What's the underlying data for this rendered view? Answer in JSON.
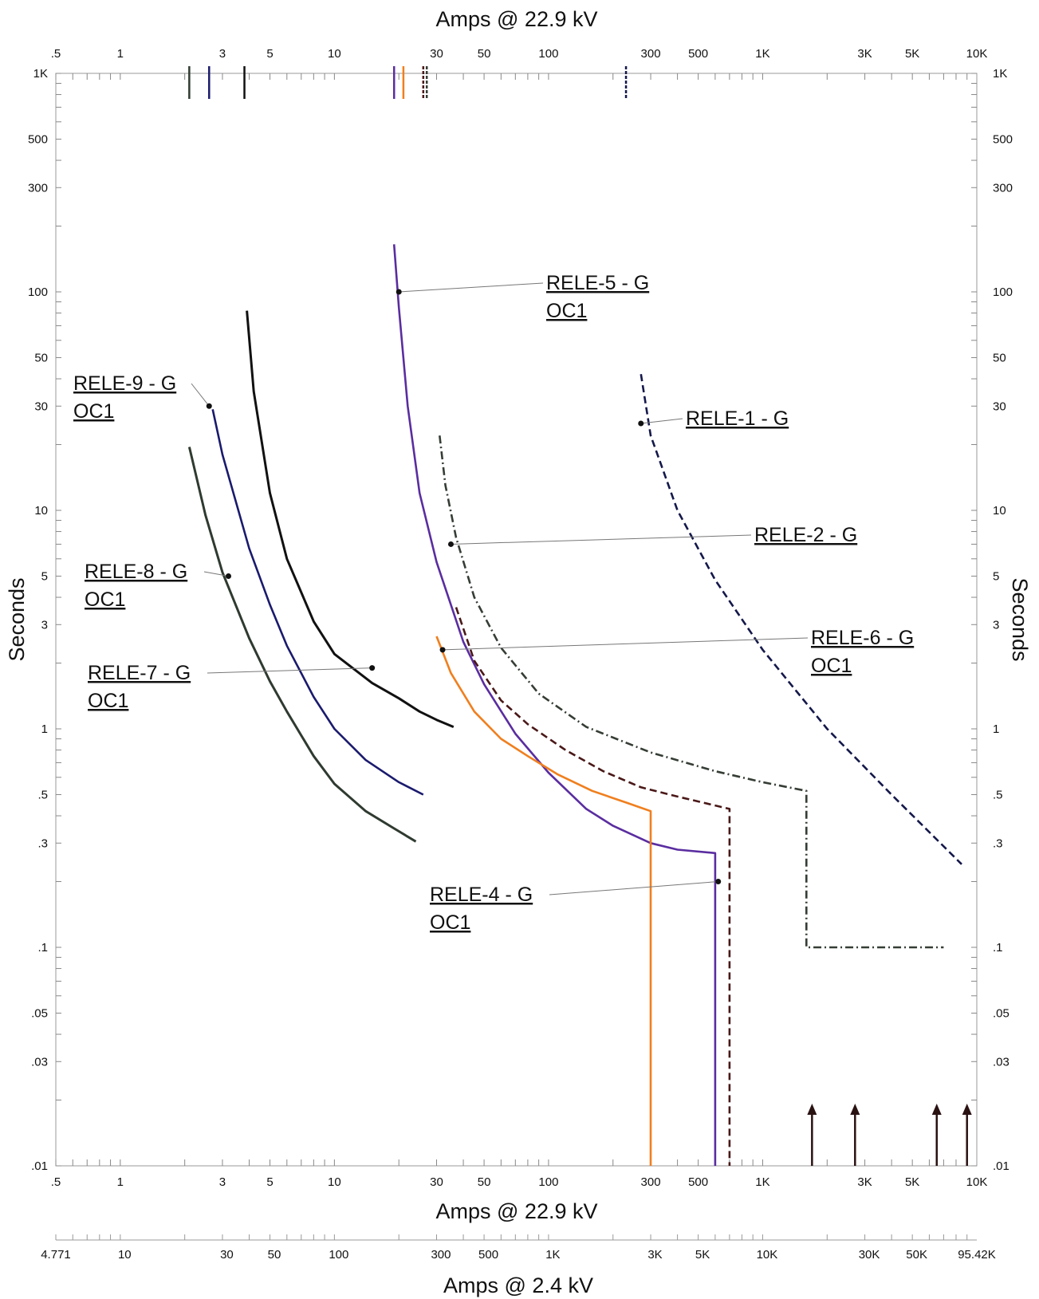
{
  "chart_data": {
    "type": "line",
    "title": "",
    "xlabel_top": "Amps @ 22.9 kV",
    "xlabel_bottom": "Amps @ 22.9 kV",
    "xlabel_secondary": "Amps @ 2.4 kV",
    "ylabel_left": "Seconds",
    "ylabel_right": "Seconds",
    "x_scale": "log",
    "y_scale": "log",
    "xlim": [
      0.5,
      10000
    ],
    "ylim": [
      0.01,
      1000
    ],
    "x_ticks": [
      {
        "value": 0.5,
        "label": ".5"
      },
      {
        "value": 1,
        "label": "1"
      },
      {
        "value": 3,
        "label": "3"
      },
      {
        "value": 5,
        "label": "5"
      },
      {
        "value": 10,
        "label": "10"
      },
      {
        "value": 30,
        "label": "30"
      },
      {
        "value": 50,
        "label": "50"
      },
      {
        "value": 100,
        "label": "100"
      },
      {
        "value": 300,
        "label": "300"
      },
      {
        "value": 500,
        "label": "500"
      },
      {
        "value": 1000,
        "label": "1K"
      },
      {
        "value": 3000,
        "label": "3K"
      },
      {
        "value": 5000,
        "label": "5K"
      },
      {
        "value": 10000,
        "label": "10K"
      }
    ],
    "x_ticks_secondary": [
      {
        "value": 0.5,
        "label": "4.771"
      },
      {
        "value": 1.048,
        "label": "10"
      },
      {
        "value": 3.144,
        "label": "30"
      },
      {
        "value": 5.24,
        "label": "50"
      },
      {
        "value": 10.48,
        "label": "100"
      },
      {
        "value": 31.44,
        "label": "300"
      },
      {
        "value": 52.4,
        "label": "500"
      },
      {
        "value": 104.8,
        "label": "1K"
      },
      {
        "value": 314.4,
        "label": "3K"
      },
      {
        "value": 524,
        "label": "5K"
      },
      {
        "value": 1048,
        "label": "10K"
      },
      {
        "value": 3144,
        "label": "30K"
      },
      {
        "value": 5240,
        "label": "50K"
      },
      {
        "value": 10000,
        "label": "95.42K"
      }
    ],
    "y_ticks": [
      {
        "value": 1000,
        "label": "1K"
      },
      {
        "value": 500,
        "label": "500"
      },
      {
        "value": 300,
        "label": "300"
      },
      {
        "value": 100,
        "label": "100"
      },
      {
        "value": 50,
        "label": "50"
      },
      {
        "value": 30,
        "label": "30"
      },
      {
        "value": 10,
        "label": "10"
      },
      {
        "value": 5,
        "label": "5"
      },
      {
        "value": 3,
        "label": "3"
      },
      {
        "value": 1,
        "label": "1"
      },
      {
        "value": 0.5,
        "label": ".5"
      },
      {
        "value": 0.3,
        "label": ".3"
      },
      {
        "value": 0.1,
        "label": ".1"
      },
      {
        "value": 0.05,
        "label": ".05"
      },
      {
        "value": 0.03,
        "label": ".03"
      },
      {
        "value": 0.01,
        "label": ".01"
      }
    ],
    "grid": false,
    "series": [
      {
        "name": "RELE-7 - G OC1",
        "color": "#2f3a30",
        "dash": "solid",
        "pickup": 2.1,
        "x": [
          2.1,
          2.5,
          3,
          4,
          5,
          6,
          8,
          10,
          14,
          19,
          24
        ],
        "y": [
          19.5,
          9.5,
          5.2,
          2.6,
          1.65,
          1.2,
          0.75,
          0.56,
          0.42,
          0.35,
          0.305
        ]
      },
      {
        "name": "RELE-8 - G OC1",
        "color": "#1a1a6e",
        "dash": "solid",
        "pickup": 2.6,
        "x": [
          2.7,
          3,
          4,
          5,
          6,
          8,
          10,
          14,
          20,
          26
        ],
        "y": [
          29,
          18,
          6.7,
          3.7,
          2.4,
          1.4,
          1.0,
          0.72,
          0.57,
          0.5
        ]
      },
      {
        "name": "RELE-9 - G OC1",
        "color": "#111111",
        "dash": "solid",
        "pickup": 3.8,
        "x": [
          3.9,
          4.2,
          5,
          6,
          8,
          10,
          15,
          20,
          25,
          30,
          36
        ],
        "y": [
          82,
          35,
          12,
          6.0,
          3.1,
          2.2,
          1.62,
          1.38,
          1.2,
          1.1,
          1.02
        ]
      },
      {
        "name": "RELE-5 - G OC1",
        "color": "#5a2da0",
        "dash": "solid",
        "pickup": 19,
        "x": [
          19,
          20,
          22,
          25,
          30,
          40,
          50,
          70,
          100,
          150,
          200,
          300,
          400,
          600,
          600
        ],
        "y": [
          165,
          85,
          30,
          12,
          5.8,
          2.5,
          1.6,
          0.95,
          0.63,
          0.43,
          0.36,
          0.3,
          0.28,
          0.27,
          0.01
        ]
      },
      {
        "name": "RELE-6 - G OC1",
        "color": "#f07f1e",
        "dash": "solid",
        "pickup": 21,
        "x": [
          30,
          35,
          45,
          60,
          80,
          110,
          160,
          230,
          300,
          300
        ],
        "y": [
          2.65,
          1.8,
          1.2,
          0.9,
          0.75,
          0.62,
          0.52,
          0.46,
          0.42,
          0.01
        ]
      },
      {
        "name": "RELE-4 - G OC1",
        "color": "#4a1818",
        "dash": "dashed",
        "pickup": 26,
        "x": [
          37,
          45,
          60,
          80,
          120,
          180,
          270,
          400,
          700,
          700
        ],
        "y": [
          3.6,
          2.05,
          1.35,
          1.05,
          0.8,
          0.64,
          0.54,
          0.49,
          0.43,
          0.01
        ]
      },
      {
        "name": "RELE-2 - G",
        "color": "#353d35",
        "dash": "dashdot",
        "pickup": 27,
        "x": [
          31,
          33,
          37,
          45,
          60,
          90,
          150,
          300,
          600,
          1000,
          1600,
          1600,
          7000
        ],
        "y": [
          22,
          13,
          7.5,
          4.0,
          2.35,
          1.45,
          1.02,
          0.78,
          0.64,
          0.57,
          0.52,
          0.1,
          0.1
        ]
      },
      {
        "name": "RELE-1 - G",
        "color": "#14184a",
        "dash": "dashed",
        "pickup": 230,
        "x": [
          270,
          300,
          400,
          600,
          1000,
          2000,
          4000,
          8500
        ],
        "y": [
          42,
          22,
          10,
          4.8,
          2.3,
          1.0,
          0.5,
          0.24
        ]
      }
    ],
    "pickup_marker_colors": [
      "#2f3a30",
      "#1a1a6e",
      "#111111",
      "#5a2da0",
      "#f07f1e",
      "#4a1818",
      "#353d35",
      "#14184a"
    ],
    "fault_arrows_x": [
      1700,
      2700,
      6500,
      9000
    ],
    "labels": [
      {
        "line1": "RELE-5 - G",
        "line2": "OC1",
        "points_to": [
          20,
          100
        ]
      },
      {
        "line1": "RELE-9 - G",
        "line2": "OC1",
        "points_to": [
          2.6,
          30
        ]
      },
      {
        "line1": "RELE-1 - G",
        "line2": "",
        "points_to": [
          270,
          25
        ]
      },
      {
        "line1": "RELE-2 - G",
        "line2": "",
        "points_to": [
          35,
          7.0
        ]
      },
      {
        "line1": "RELE-8 - G",
        "line2": "OC1",
        "points_to": [
          3.2,
          5
        ]
      },
      {
        "line1": "RELE-6 - G",
        "line2": "OC1",
        "points_to": [
          32,
          2.3
        ]
      },
      {
        "line1": "RELE-7 - G",
        "line2": "OC1",
        "points_to": [
          15,
          1.9
        ]
      },
      {
        "line1": "RELE-4 - G",
        "line2": "OC1",
        "points_to": [
          620,
          0.2
        ]
      }
    ]
  }
}
